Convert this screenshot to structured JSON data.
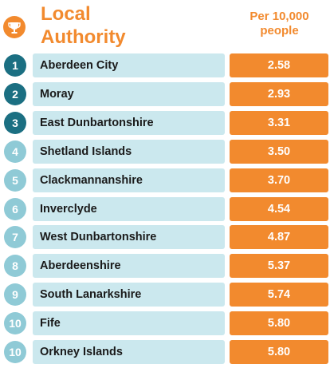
{
  "header": {
    "title_line1": "Local",
    "title_line2": "Authority",
    "value_header_line1": "Per 10,000",
    "value_header_line2": "people",
    "icon": "trophy-icon"
  },
  "colors": {
    "orange": "#f28a2e",
    "rank_dark": "#1b6f82",
    "rank_light": "#8fcad6",
    "row_bg": "#cbe8ee"
  },
  "chart_data": {
    "type": "table",
    "columns": [
      "Local Authority",
      "Per 10,000 people"
    ],
    "rows": [
      {
        "rank": "1",
        "name": "Aberdeen City",
        "value": "2.58"
      },
      {
        "rank": "2",
        "name": "Moray",
        "value": "2.93"
      },
      {
        "rank": "3",
        "name": "East Dunbartonshire",
        "value": "3.31"
      },
      {
        "rank": "4",
        "name": "Shetland Islands",
        "value": "3.50"
      },
      {
        "rank": "5",
        "name": "Clackmannanshire",
        "value": "3.70"
      },
      {
        "rank": "6",
        "name": "Inverclyde",
        "value": "4.54"
      },
      {
        "rank": "7",
        "name": "West Dunbartonshire",
        "value": "4.87"
      },
      {
        "rank": "8",
        "name": "Aberdeenshire",
        "value": "5.37"
      },
      {
        "rank": "9",
        "name": "South Lanarkshire",
        "value": "5.74"
      },
      {
        "rank": "10",
        "name": "Fife",
        "value": "5.80"
      },
      {
        "rank": "10",
        "name": "Orkney Islands",
        "value": "5.80"
      }
    ]
  }
}
